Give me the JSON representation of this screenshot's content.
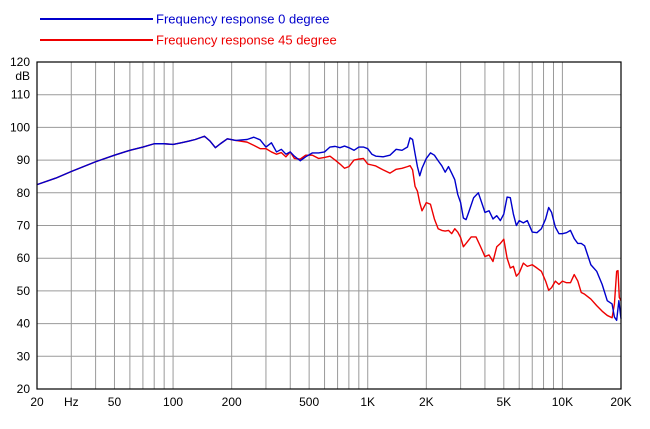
{
  "chart_data": {
    "type": "line",
    "x_scale": "log",
    "xlim": [
      20,
      20000
    ],
    "ylim": [
      20,
      120
    ],
    "ylabel": "dB",
    "y_ticks": [
      20,
      30,
      40,
      50,
      60,
      70,
      80,
      90,
      100,
      110,
      120
    ],
    "x_tick_labels": [
      {
        "value": 20,
        "label": "20"
      },
      {
        "value": 30,
        "label": "Hz"
      },
      {
        "value": 50,
        "label": "50"
      },
      {
        "value": 100,
        "label": "100"
      },
      {
        "value": 200,
        "label": "200"
      },
      {
        "value": 500,
        "label": "500"
      },
      {
        "value": 1000,
        "label": "1K"
      },
      {
        "value": 2000,
        "label": "2K"
      },
      {
        "value": 5000,
        "label": "5K"
      },
      {
        "value": 10000,
        "label": "10K"
      },
      {
        "value": 20000,
        "label": "20K"
      }
    ],
    "grid": true,
    "legend_position": "top-left",
    "series": [
      {
        "name": "Frequency response 0 degree",
        "color": "#0000cc",
        "points": [
          [
            20,
            82.5
          ],
          [
            25,
            84.5
          ],
          [
            30,
            86.5
          ],
          [
            40,
            89.5
          ],
          [
            50,
            91.5
          ],
          [
            60,
            93
          ],
          [
            70,
            94
          ],
          [
            80,
            95
          ],
          [
            90,
            95
          ],
          [
            100,
            94.8
          ],
          [
            110,
            95.3
          ],
          [
            120,
            95.8
          ],
          [
            130,
            96.3
          ],
          [
            145,
            97.3
          ],
          [
            155,
            95.8
          ],
          [
            165,
            93.8
          ],
          [
            175,
            95
          ],
          [
            190,
            96.5
          ],
          [
            210,
            96
          ],
          [
            240,
            96.3
          ],
          [
            260,
            97
          ],
          [
            280,
            96.2
          ],
          [
            300,
            94
          ],
          [
            320,
            95.3
          ],
          [
            340,
            92.5
          ],
          [
            360,
            93.3
          ],
          [
            380,
            91.8
          ],
          [
            400,
            92.5
          ],
          [
            420,
            91.2
          ],
          [
            450,
            89.8
          ],
          [
            480,
            91
          ],
          [
            520,
            92.2
          ],
          [
            560,
            92.2
          ],
          [
            600,
            92.5
          ],
          [
            640,
            94
          ],
          [
            680,
            94.2
          ],
          [
            720,
            93.8
          ],
          [
            760,
            94.3
          ],
          [
            800,
            93.8
          ],
          [
            850,
            93
          ],
          [
            900,
            94
          ],
          [
            950,
            94
          ],
          [
            1000,
            93.5
          ],
          [
            1050,
            91.8
          ],
          [
            1100,
            91.2
          ],
          [
            1200,
            91
          ],
          [
            1300,
            91.5
          ],
          [
            1400,
            93.3
          ],
          [
            1500,
            93
          ],
          [
            1600,
            94
          ],
          [
            1650,
            96.8
          ],
          [
            1700,
            96.3
          ],
          [
            1750,
            92
          ],
          [
            1800,
            88
          ],
          [
            1850,
            85.2
          ],
          [
            1900,
            87.5
          ],
          [
            2000,
            90.5
          ],
          [
            2100,
            92.2
          ],
          [
            2200,
            91.5
          ],
          [
            2300,
            89.8
          ],
          [
            2400,
            88.3
          ],
          [
            2500,
            86.3
          ],
          [
            2600,
            88
          ],
          [
            2700,
            86
          ],
          [
            2800,
            84
          ],
          [
            2900,
            79.5
          ],
          [
            3000,
            77
          ],
          [
            3100,
            72.3
          ],
          [
            3200,
            71.8
          ],
          [
            3300,
            74
          ],
          [
            3500,
            78.5
          ],
          [
            3700,
            80
          ],
          [
            3900,
            76
          ],
          [
            4000,
            74
          ],
          [
            4200,
            74.5
          ],
          [
            4400,
            72
          ],
          [
            4600,
            73
          ],
          [
            4800,
            71.5
          ],
          [
            5000,
            73.5
          ],
          [
            5200,
            78.7
          ],
          [
            5400,
            78.5
          ],
          [
            5600,
            73.5
          ],
          [
            5800,
            70
          ],
          [
            6000,
            71.5
          ],
          [
            6300,
            70.8
          ],
          [
            6600,
            71.5
          ],
          [
            7000,
            68
          ],
          [
            7400,
            67.8
          ],
          [
            7800,
            69
          ],
          [
            8200,
            72
          ],
          [
            8500,
            75.5
          ],
          [
            8800,
            74
          ],
          [
            9200,
            69.5
          ],
          [
            9600,
            67.5
          ],
          [
            10000,
            67.5
          ],
          [
            10500,
            67.8
          ],
          [
            11000,
            68.5
          ],
          [
            11500,
            66
          ],
          [
            12000,
            64.5
          ],
          [
            12500,
            64.5
          ],
          [
            13000,
            63.8
          ],
          [
            14000,
            58
          ],
          [
            15000,
            56
          ],
          [
            16000,
            52
          ],
          [
            17000,
            47
          ],
          [
            18000,
            46
          ],
          [
            18500,
            42
          ],
          [
            19000,
            41
          ],
          [
            19500,
            47
          ],
          [
            20000,
            41.5
          ]
        ]
      },
      {
        "name": "Frequency response 45 degree",
        "color": "#ee0000",
        "points": [
          [
            20,
            82.5
          ],
          [
            25,
            84.5
          ],
          [
            30,
            86.5
          ],
          [
            40,
            89.5
          ],
          [
            50,
            91.5
          ],
          [
            60,
            93
          ],
          [
            70,
            94
          ],
          [
            80,
            95
          ],
          [
            90,
            95
          ],
          [
            100,
            94.8
          ],
          [
            110,
            95.3
          ],
          [
            120,
            95.8
          ],
          [
            130,
            96.3
          ],
          [
            145,
            97.3
          ],
          [
            155,
            95.8
          ],
          [
            165,
            93.8
          ],
          [
            175,
            95
          ],
          [
            190,
            96.5
          ],
          [
            210,
            96
          ],
          [
            240,
            95.5
          ],
          [
            260,
            94.5
          ],
          [
            280,
            93.5
          ],
          [
            300,
            93.5
          ],
          [
            320,
            92.5
          ],
          [
            340,
            91.8
          ],
          [
            360,
            92.3
          ],
          [
            380,
            91
          ],
          [
            400,
            92.5
          ],
          [
            420,
            90.5
          ],
          [
            450,
            90.3
          ],
          [
            480,
            91.5
          ],
          [
            520,
            91.5
          ],
          [
            560,
            90.5
          ],
          [
            600,
            90.8
          ],
          [
            640,
            91.2
          ],
          [
            680,
            90
          ],
          [
            720,
            88.8
          ],
          [
            760,
            87.5
          ],
          [
            800,
            88
          ],
          [
            850,
            90
          ],
          [
            900,
            90.3
          ],
          [
            950,
            90.5
          ],
          [
            1000,
            88.8
          ],
          [
            1050,
            88.5
          ],
          [
            1100,
            88.2
          ],
          [
            1200,
            87
          ],
          [
            1300,
            86
          ],
          [
            1400,
            87.2
          ],
          [
            1500,
            87.5
          ],
          [
            1600,
            88
          ],
          [
            1650,
            88.3
          ],
          [
            1700,
            87
          ],
          [
            1750,
            82
          ],
          [
            1800,
            80.5
          ],
          [
            1850,
            77
          ],
          [
            1900,
            74.5
          ],
          [
            2000,
            77
          ],
          [
            2100,
            76.5
          ],
          [
            2200,
            72
          ],
          [
            2300,
            69
          ],
          [
            2400,
            68.5
          ],
          [
            2500,
            68.3
          ],
          [
            2600,
            68.5
          ],
          [
            2700,
            67.5
          ],
          [
            2800,
            69
          ],
          [
            2900,
            68
          ],
          [
            3000,
            66.3
          ],
          [
            3100,
            63.5
          ],
          [
            3200,
            64.5
          ],
          [
            3400,
            66.5
          ],
          [
            3600,
            66.5
          ],
          [
            3800,
            63.5
          ],
          [
            4000,
            60.5
          ],
          [
            4200,
            61
          ],
          [
            4400,
            59
          ],
          [
            4600,
            63.5
          ],
          [
            4800,
            64.5
          ],
          [
            5000,
            65.8
          ],
          [
            5200,
            60
          ],
          [
            5400,
            57
          ],
          [
            5600,
            57.5
          ],
          [
            5800,
            54.5
          ],
          [
            6000,
            55.5
          ],
          [
            6300,
            58.5
          ],
          [
            6600,
            57.5
          ],
          [
            7000,
            58
          ],
          [
            7400,
            57
          ],
          [
            7800,
            56
          ],
          [
            8200,
            53
          ],
          [
            8500,
            50.2
          ],
          [
            8800,
            51
          ],
          [
            9200,
            53
          ],
          [
            9600,
            52
          ],
          [
            10000,
            53
          ],
          [
            10500,
            52.5
          ],
          [
            11000,
            52.5
          ],
          [
            11500,
            55
          ],
          [
            12000,
            53
          ],
          [
            12500,
            49.5
          ],
          [
            13000,
            49
          ],
          [
            14000,
            47.5
          ],
          [
            15000,
            45.5
          ],
          [
            16000,
            43.8
          ],
          [
            17000,
            42.5
          ],
          [
            18000,
            41.8
          ],
          [
            18500,
            46
          ],
          [
            19000,
            56
          ],
          [
            19300,
            56.2
          ],
          [
            19600,
            48
          ],
          [
            20000,
            47
          ]
        ]
      }
    ]
  }
}
